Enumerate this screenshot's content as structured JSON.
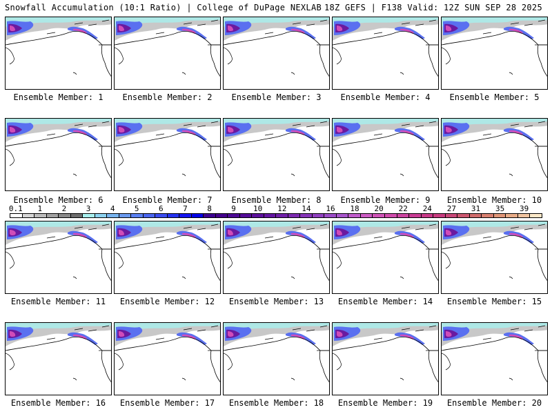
{
  "header": {
    "title_left": "Snowfall Accumulation (10:1 Ratio) | College of DuPage NEXLAB",
    "title_right": "18Z GEFS | F138 Valid: 12Z SUN SEP 28 2025"
  },
  "panels": [
    {
      "label": "Ensemble Member: 1"
    },
    {
      "label": "Ensemble Member: 2"
    },
    {
      "label": "Ensemble Member: 3"
    },
    {
      "label": "Ensemble Member: 4"
    },
    {
      "label": "Ensemble Member: 5"
    },
    {
      "label": "Ensemble Member: 6"
    },
    {
      "label": "Ensemble Member: 7"
    },
    {
      "label": "Ensemble Member: 8"
    },
    {
      "label": "Ensemble Member: 9"
    },
    {
      "label": "Ensemble Member: 10"
    },
    {
      "label": "Ensemble Member: 11"
    },
    {
      "label": "Ensemble Member: 12"
    },
    {
      "label": "Ensemble Member: 13"
    },
    {
      "label": "Ensemble Member: 14"
    },
    {
      "label": "Ensemble Member: 15"
    },
    {
      "label": "Ensemble Member: 16"
    },
    {
      "label": "Ensemble Member: 17"
    },
    {
      "label": "Ensemble Member: 18"
    },
    {
      "label": "Ensemble Member: 19"
    },
    {
      "label": "Ensemble Member: 20"
    }
  ],
  "colorbar": {
    "labels": [
      "0.1",
      "1",
      "2",
      "3",
      "4",
      "5",
      "6",
      "7",
      "8",
      "9",
      "10",
      "12",
      "14",
      "16",
      "18",
      "20",
      "22",
      "24",
      "27",
      "31",
      "35",
      "39"
    ],
    "colors": [
      "#ffffff",
      "#d6d6d6",
      "#bcbcbc",
      "#a2a2a2",
      "#8a8a8a",
      "#6e6e6e",
      "#a8f0ee",
      "#8cd2f0",
      "#78b4f0",
      "#6a9af0",
      "#5a80f2",
      "#4a66f0",
      "#3a4cf0",
      "#2432f0",
      "#1414f0",
      "#0000e6",
      "#3c0090",
      "#44008c",
      "#4c0a94",
      "#540c98",
      "#5c109c",
      "#6416a2",
      "#7020a8",
      "#7c2ab0",
      "#8634b8",
      "#9040c0",
      "#9c4cc8",
      "#a856cc",
      "#c05ccc",
      "#cc5cc4",
      "#d054b8",
      "#d04cac",
      "#cc44a0",
      "#c83c94",
      "#c83888",
      "#c83c80",
      "#c84878",
      "#cc5870",
      "#d06c6c",
      "#d88070",
      "#e09678",
      "#e8ac88",
      "#f0c4a0",
      "#fce8c8"
    ]
  },
  "map_colors": {
    "ocean": "#ffffff",
    "snow_light": "#c8c8c8",
    "snow_cyan": "#a8f0ee",
    "snow_blue": "#5a70f0",
    "snow_purple": "#6a1aa0",
    "snow_magenta": "#d04cb8",
    "coast": "#000000"
  }
}
